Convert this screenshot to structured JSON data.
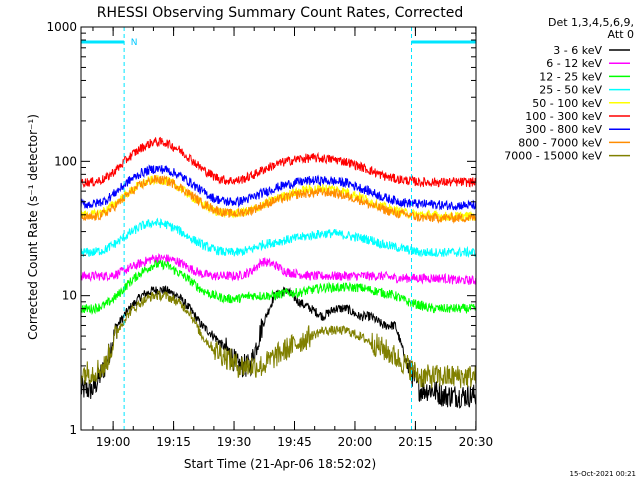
{
  "chart_data": {
    "type": "line",
    "title": "RHESSI Observing Summary Count Rates, Corrected",
    "xlabel": "Start Time (21-Apr-06 18:52:02)",
    "ylabel": "Corrected Count Rate (s⁻¹ detector⁻¹)",
    "yscale": "log",
    "ylim": [
      1,
      1000
    ],
    "xlim_minutes": [
      0,
      98
    ],
    "x_ticks": [
      {
        "label": "19:00",
        "minute": 7.97
      },
      {
        "label": "19:15",
        "minute": 22.97
      },
      {
        "label": "19:30",
        "minute": 37.97
      },
      {
        "label": "19:45",
        "minute": 52.97
      },
      {
        "label": "20:00",
        "minute": 67.97
      },
      {
        "label": "20:15",
        "minute": 82.97
      },
      {
        "label": "20:30",
        "minute": 97.97
      }
    ],
    "y_ticks": [
      {
        "label": "1",
        "value": 1
      },
      {
        "label": "10",
        "value": 10
      },
      {
        "label": "100",
        "value": 100
      },
      {
        "label": "1000",
        "value": 1000
      }
    ],
    "legend_header": [
      "Det 1,3,4,5,6,9,",
      "Att 0"
    ],
    "legend_position": "right",
    "night_label": "N",
    "footer_date": "15-Oct-2021 00:21",
    "night_intervals": [
      [
        0,
        10.7
      ],
      [
        82.0,
        98
      ]
    ],
    "x_sample_minutes": [
      0,
      3,
      6,
      9,
      12,
      15,
      18,
      21,
      24,
      27,
      30,
      33,
      36,
      39,
      42,
      45,
      48,
      51,
      54,
      57,
      60,
      63,
      66,
      69,
      72,
      75,
      78,
      81,
      84,
      87,
      90,
      93,
      96
    ],
    "series": [
      {
        "name": "3 - 6 keV",
        "color": "#000000",
        "values": [
          2,
          2,
          3,
          6,
          8,
          10,
          11,
          11,
          10,
          8,
          6,
          5,
          4,
          3,
          3,
          6,
          10,
          11,
          9,
          8,
          7,
          8,
          8,
          7,
          7,
          6,
          6,
          3,
          2,
          2,
          1.8,
          1.8,
          1.8
        ]
      },
      {
        "name": "6 - 12 keV",
        "color": "#ff00ff",
        "values": [
          14,
          14,
          14,
          14.5,
          16,
          17.5,
          19,
          19,
          18,
          16,
          14.5,
          14,
          14,
          14,
          15,
          18,
          17,
          15,
          14.5,
          14,
          14,
          14,
          14,
          14,
          14,
          14,
          13.5,
          13.5,
          13.5,
          13.5,
          13.5,
          13,
          13
        ]
      },
      {
        "name": "12 - 25 keV",
        "color": "#00ff00",
        "values": [
          8,
          8,
          8.5,
          10,
          12.5,
          15,
          17,
          17,
          15,
          13,
          11,
          10,
          9.5,
          9.5,
          10,
          10,
          10,
          10.5,
          10.5,
          11,
          11.5,
          11.5,
          11.5,
          11.5,
          11,
          10.5,
          10,
          9,
          8.5,
          8,
          8,
          8,
          8
        ]
      },
      {
        "name": "25 - 50 keV",
        "color": "#00ffff",
        "values": [
          21,
          21,
          22,
          25,
          29,
          33,
          35,
          34,
          31,
          27,
          24,
          22,
          21,
          21,
          22,
          24,
          25,
          26,
          27,
          28,
          29,
          29,
          28,
          27,
          26,
          24,
          23,
          22,
          21,
          21,
          21,
          21,
          21
        ]
      },
      {
        "name": "50 - 100 keV",
        "color": "#ffff00",
        "values": [
          40,
          40,
          43,
          50,
          59,
          68,
          73,
          72,
          65,
          56,
          48,
          43,
          41,
          41,
          43,
          47,
          52,
          56,
          60,
          62,
          63,
          62,
          59,
          55,
          50,
          46,
          43,
          41,
          40,
          40,
          39,
          39,
          39
        ]
      },
      {
        "name": "100 - 300 keV",
        "color": "#ff0000",
        "values": [
          70,
          70,
          74,
          88,
          108,
          126,
          140,
          138,
          124,
          106,
          88,
          77,
          72,
          72,
          77,
          86,
          94,
          100,
          104,
          106,
          105,
          103,
          99,
          92,
          85,
          78,
          74,
          72,
          70,
          70,
          70,
          70,
          70
        ]
      },
      {
        "name": "300 - 800 keV",
        "color": "#0000ff",
        "values": [
          48,
          48,
          51,
          60,
          72,
          82,
          88,
          87,
          80,
          70,
          60,
          53,
          50,
          50,
          53,
          58,
          63,
          67,
          70,
          72,
          72,
          71,
          69,
          64,
          59,
          54,
          51,
          49,
          48,
          48,
          47,
          47,
          47
        ]
      },
      {
        "name": "800 - 7000 keV",
        "color": "#ff8c00",
        "values": [
          38,
          38,
          41,
          48,
          58,
          67,
          73,
          72,
          66,
          57,
          49,
          44,
          41,
          41,
          43,
          47,
          51,
          54,
          57,
          58,
          59,
          58,
          55,
          52,
          47,
          44,
          41,
          40,
          38,
          38,
          38,
          38,
          38
        ]
      },
      {
        "name": "7000 - 15000 keV",
        "color": "#808000",
        "values": [
          2.7,
          2.7,
          3,
          5.5,
          7.5,
          9,
          10,
          10,
          9,
          7.5,
          5,
          4,
          3.5,
          3,
          3,
          3,
          3.5,
          4,
          4.5,
          5,
          5.5,
          5.5,
          5.5,
          5,
          4.5,
          4,
          3.5,
          3,
          2.5,
          2.5,
          2.5,
          2.5,
          2.5
        ]
      }
    ]
  }
}
